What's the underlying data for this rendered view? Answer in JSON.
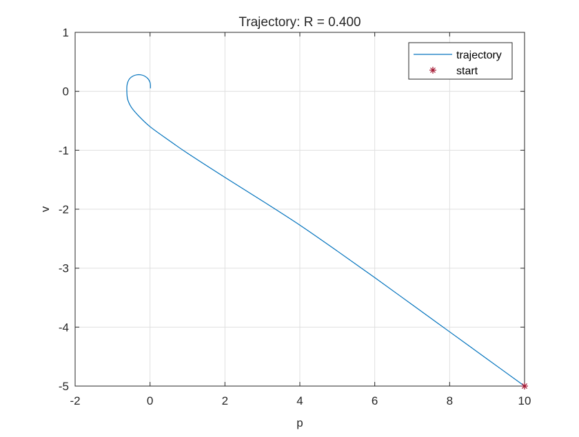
{
  "chart_data": {
    "type": "line",
    "title": "Trajectory: R = 0.400",
    "xlabel": "p",
    "ylabel": "v",
    "xlim": [
      -2,
      10
    ],
    "ylim": [
      -5,
      1
    ],
    "xticks": [
      -2,
      0,
      2,
      4,
      6,
      8,
      10
    ],
    "yticks": [
      -5,
      -4,
      -3,
      -2,
      -1,
      0,
      1
    ],
    "grid": true,
    "legend_position": "top-right",
    "series": [
      {
        "name": "trajectory",
        "type": "line",
        "color": "#0072BD",
        "x": [
          10,
          9,
          8,
          7,
          6,
          5,
          4,
          3,
          2,
          1,
          0.5,
          0,
          -0.3,
          -0.5,
          -0.6,
          -0.62,
          -0.61,
          -0.55,
          -0.45,
          -0.35,
          -0.25,
          -0.15,
          -0.05,
          0,
          0.01,
          0.01
        ],
        "y": [
          -5,
          -4.54,
          -4.08,
          -3.62,
          -3.16,
          -2.71,
          -2.27,
          -1.86,
          -1.46,
          -1.05,
          -0.83,
          -0.6,
          -0.42,
          -0.27,
          -0.13,
          0.02,
          0.12,
          0.21,
          0.26,
          0.28,
          0.28,
          0.26,
          0.21,
          0.15,
          0.1,
          0.05
        ]
      },
      {
        "name": "start",
        "type": "marker",
        "marker": "asterisk",
        "color": "#A2142F",
        "x": [
          10
        ],
        "y": [
          -5
        ]
      }
    ]
  }
}
